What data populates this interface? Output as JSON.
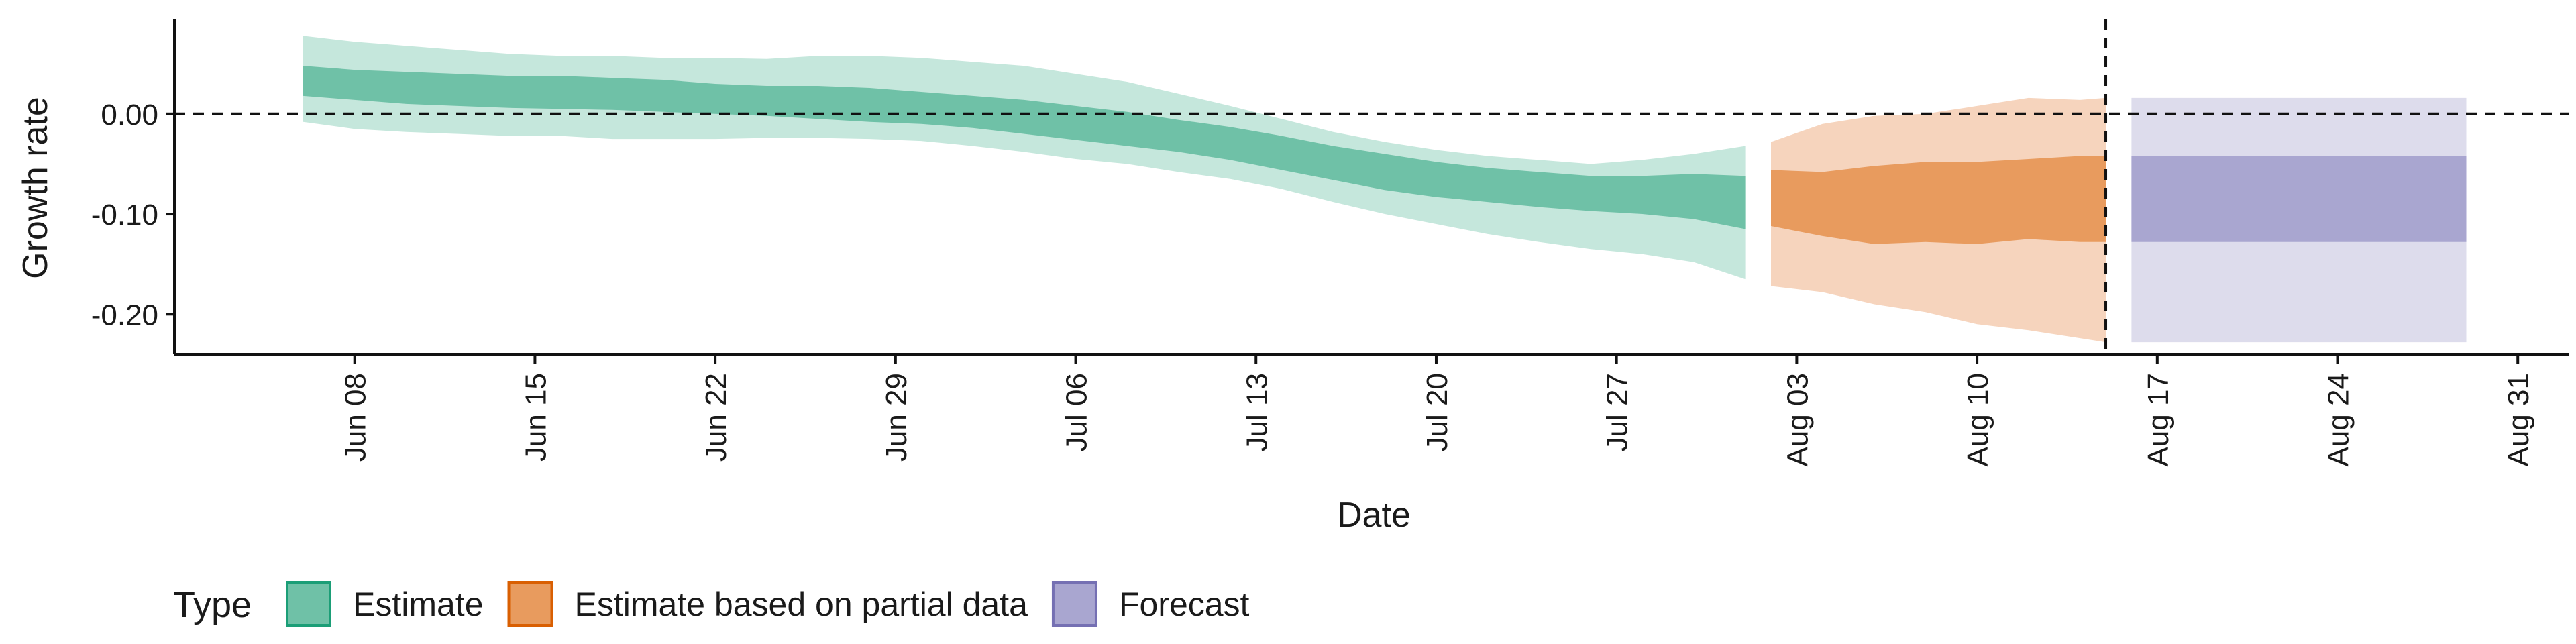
{
  "chart_data": {
    "type": "area",
    "xlabel": "Date",
    "ylabel": "Growth rate",
    "x_tick_labels": [
      "Jun 08",
      "Jun 15",
      "Jun 22",
      "Jun 29",
      "Jul 06",
      "Jul 13",
      "Jul 20",
      "Jul 27",
      "Aug 03",
      "Aug 10",
      "Aug 17",
      "Aug 24",
      "Aug 31"
    ],
    "y_tick_labels": [
      "0.00",
      "-0.10",
      "-0.20"
    ],
    "y_ticks": [
      0.0,
      -0.1,
      -0.2
    ],
    "xlim": [
      "2020-06-01",
      "2020-09-02"
    ],
    "ylim": [
      -0.24,
      0.095
    ],
    "grid": false,
    "hline": {
      "y": 0.0,
      "style": "dashed"
    },
    "vline": {
      "x": "2020-08-15",
      "style": "dashed"
    },
    "legend": {
      "title": "Type",
      "position": "bottom-left",
      "entries": [
        "Estimate",
        "Estimate based on partial data",
        "Forecast"
      ]
    },
    "colors": {
      "Estimate": {
        "inner": "#6fc1a7",
        "outer": "#c5e7dc",
        "key_border": "#1b9e77"
      },
      "Estimate based on partial data": {
        "inner": "#e89b5e",
        "outer": "#f6d4bd",
        "key_border": "#d95f02"
      },
      "Forecast": {
        "inner": "#a9a6d0",
        "outer": "#dddcec",
        "key_border": "#7570b3"
      }
    },
    "series": [
      {
        "name": "Estimate",
        "x": [
          "2020-06-06",
          "2020-06-08",
          "2020-06-10",
          "2020-06-12",
          "2020-06-14",
          "2020-06-16",
          "2020-06-18",
          "2020-06-20",
          "2020-06-22",
          "2020-06-24",
          "2020-06-26",
          "2020-06-28",
          "2020-06-30",
          "2020-07-02",
          "2020-07-04",
          "2020-07-06",
          "2020-07-08",
          "2020-07-10",
          "2020-07-12",
          "2020-07-14",
          "2020-07-16",
          "2020-07-18",
          "2020-07-20",
          "2020-07-22",
          "2020-07-24",
          "2020-07-26",
          "2020-07-28",
          "2020-07-30",
          "2020-08-01"
        ],
        "lower_90": [
          -0.008,
          -0.015,
          -0.018,
          -0.02,
          -0.022,
          -0.022,
          -0.025,
          -0.025,
          -0.025,
          -0.024,
          -0.024,
          -0.025,
          -0.027,
          -0.032,
          -0.038,
          -0.045,
          -0.05,
          -0.058,
          -0.065,
          -0.075,
          -0.088,
          -0.1,
          -0.11,
          -0.12,
          -0.128,
          -0.135,
          -0.14,
          -0.148,
          -0.165
        ],
        "lower_50": [
          0.018,
          0.014,
          0.01,
          0.008,
          0.006,
          0.005,
          0.004,
          0.002,
          0.0,
          -0.002,
          -0.005,
          -0.008,
          -0.01,
          -0.014,
          -0.02,
          -0.026,
          -0.032,
          -0.038,
          -0.046,
          -0.056,
          -0.066,
          -0.076,
          -0.083,
          -0.088,
          -0.093,
          -0.097,
          -0.1,
          -0.105,
          -0.115
        ],
        "upper_50": [
          0.048,
          0.044,
          0.042,
          0.04,
          0.038,
          0.038,
          0.036,
          0.034,
          0.03,
          0.028,
          0.028,
          0.026,
          0.022,
          0.018,
          0.014,
          0.008,
          0.002,
          -0.006,
          -0.013,
          -0.022,
          -0.032,
          -0.04,
          -0.048,
          -0.054,
          -0.058,
          -0.062,
          -0.062,
          -0.06,
          -0.062
        ],
        "upper_90": [
          0.078,
          0.072,
          0.068,
          0.064,
          0.06,
          0.058,
          0.058,
          0.056,
          0.056,
          0.055,
          0.058,
          0.058,
          0.056,
          0.052,
          0.048,
          0.04,
          0.032,
          0.02,
          0.008,
          -0.005,
          -0.018,
          -0.028,
          -0.036,
          -0.042,
          -0.046,
          -0.05,
          -0.046,
          -0.04,
          -0.032
        ]
      },
      {
        "name": "Estimate based on partial data",
        "x": [
          "2020-08-02",
          "2020-08-04",
          "2020-08-06",
          "2020-08-08",
          "2020-08-10",
          "2020-08-12",
          "2020-08-14",
          "2020-08-15"
        ],
        "lower_90": [
          -0.172,
          -0.178,
          -0.19,
          -0.198,
          -0.21,
          -0.216,
          -0.224,
          -0.228
        ],
        "lower_50": [
          -0.112,
          -0.122,
          -0.13,
          -0.128,
          -0.13,
          -0.125,
          -0.128,
          -0.128
        ],
        "upper_50": [
          -0.056,
          -0.058,
          -0.052,
          -0.048,
          -0.048,
          -0.045,
          -0.042,
          -0.042
        ],
        "upper_90": [
          -0.028,
          -0.01,
          -0.002,
          0.0,
          0.008,
          0.016,
          0.014,
          0.016
        ]
      },
      {
        "name": "Forecast",
        "x": [
          "2020-08-16",
          "2020-08-29"
        ],
        "lower_90": [
          -0.228,
          -0.228
        ],
        "lower_50": [
          -0.128,
          -0.128
        ],
        "upper_50": [
          -0.042,
          -0.042
        ],
        "upper_90": [
          0.016,
          0.016
        ]
      }
    ]
  }
}
